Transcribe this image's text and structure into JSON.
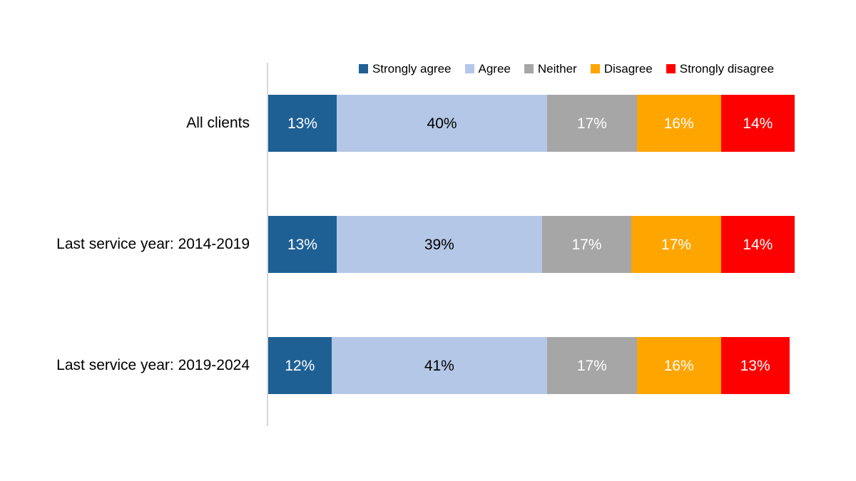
{
  "chart_data": {
    "type": "bar",
    "stacked": true,
    "orientation": "horizontal",
    "title": "",
    "categories": [
      "All clients",
      "Last service year: 2014-2019",
      "Last service year: 2019-2024"
    ],
    "series": [
      {
        "name": "Strongly agree",
        "color": "#1F6094",
        "label_color": "#FFFFFF",
        "values": [
          13,
          13,
          12
        ]
      },
      {
        "name": "Agree",
        "color": "#B4C7E7",
        "label_color": "#000000",
        "values": [
          40,
          39,
          41
        ]
      },
      {
        "name": "Neither",
        "color": "#A6A6A6",
        "label_color": "#FFFFFF",
        "values": [
          17,
          17,
          17
        ]
      },
      {
        "name": "Disagree",
        "color": "#FFA500",
        "label_color": "#FFFFFF",
        "values": [
          16,
          17,
          16
        ]
      },
      {
        "name": "Strongly disagree",
        "color": "#FF0000",
        "label_color": "#FFFFFF",
        "values": [
          14,
          14,
          13
        ]
      }
    ],
    "value_suffix": "%",
    "xlim": [
      0,
      100
    ],
    "legend_position": "top",
    "grid": false,
    "axis_line_color": "#D9D9D9",
    "background": "#FFFFFF"
  }
}
